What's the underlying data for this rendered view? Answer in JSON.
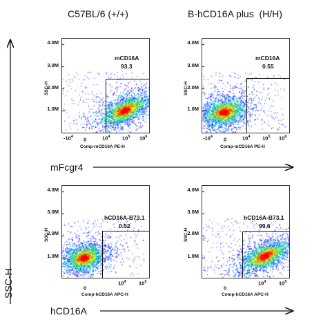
{
  "columns": [
    {
      "title": "C57BL/6 (+/+)"
    },
    {
      "title": "B-hCD16A plus  (H/H)"
    }
  ],
  "y_axis_label": "SSC-H",
  "rows": [
    {
      "marker_label": "mFcgr4"
    },
    {
      "marker_label": "hCD16A"
    }
  ],
  "panels": [
    {
      "gate_name": "mCD16A",
      "gate_value": "93.3",
      "ylabel": "SSC-H",
      "xlabel": "Comp-mCD16A PE-H",
      "yticks": [
        "4.0M",
        "3.0M",
        "2.0M",
        "1.0M"
      ],
      "xticks_base": [
        "-10",
        "0",
        "10",
        "10",
        "10"
      ],
      "xticks_exp": [
        "4",
        "",
        "4",
        "5",
        "6"
      ],
      "cluster": "high-x"
    },
    {
      "gate_name": "mCD16A",
      "gate_value": "0.55",
      "ylabel": "SSC-H",
      "xlabel": "Comp-mCD16A PE-H",
      "yticks": [
        "4.0M",
        "3.0M",
        "2.0M",
        "1.0M"
      ],
      "xticks_base": [
        "-10",
        "0",
        "10",
        "10",
        "10"
      ],
      "xticks_exp": [
        "4",
        "",
        "4",
        "5",
        "6"
      ],
      "cluster": "low-x"
    },
    {
      "gate_name": "hCD16A-B73.1",
      "gate_value": "0.52",
      "ylabel": "SSC-H",
      "xlabel": "Comp-hCD16A APC-H",
      "yticks": [
        "4.0M",
        "3.0M",
        "2.0M",
        "1.0M"
      ],
      "xticks_base": [
        "0",
        "10",
        "10"
      ],
      "xticks_exp": [
        "",
        "4",
        "5"
      ],
      "cluster": "low-x"
    },
    {
      "gate_name": "hCD16A-B73.1",
      "gate_value": "99.6",
      "ylabel": "SSC-H",
      "xlabel": "Comp-hCD16A APC-H",
      "yticks": [
        "4.0M",
        "3.0M",
        "2.0M",
        "1.0M"
      ],
      "xticks_base": [
        "0",
        "10",
        "10"
      ],
      "xticks_exp": [
        "",
        "4",
        "5"
      ],
      "cluster": "high-x"
    }
  ],
  "colors": {
    "density": [
      "#0000ff",
      "#00c8ff",
      "#00ff66",
      "#ffff00",
      "#ff7700",
      "#ff0000"
    ]
  }
}
